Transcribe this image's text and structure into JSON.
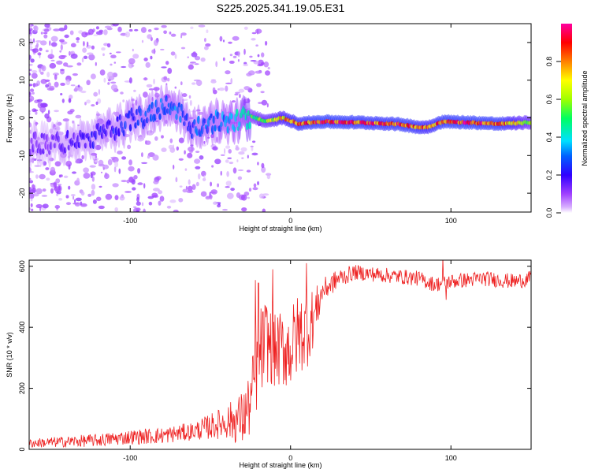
{
  "title": "S225.2025.341.19.05.E31",
  "chart_data": [
    {
      "type": "heatmap",
      "description": "Spectrogram: frequency vs height of straight line, colored by normalized spectral amplitude",
      "xlabel": "Height of straight line (km)",
      "ylabel": "Frequency (Hz)",
      "xlim": [
        -163,
        150
      ],
      "ylim": [
        -25,
        25
      ],
      "xticks": [
        -100,
        0,
        100
      ],
      "yticks": [
        -20,
        -10,
        0,
        10,
        20
      ],
      "colorbar": {
        "label": "Normalized spectral amplitude",
        "range": [
          0,
          1
        ],
        "ticks": [
          "0.0",
          "0.2",
          "0.4",
          "0.6",
          "0.8"
        ],
        "colors": [
          "#ffffff",
          "#a040ff",
          "#3000ff",
          "#0060ff",
          "#00e0ff",
          "#00ff60",
          "#a0ff00",
          "#ffff00",
          "#ff8000",
          "#ff0000",
          "#ff00a0"
        ]
      },
      "ridge": {
        "x": [
          -150,
          -130,
          -110,
          -90,
          -75,
          -60,
          -45,
          -35,
          -25,
          -15,
          -5,
          5,
          20,
          40,
          60,
          70,
          80,
          85,
          95,
          110,
          130,
          150
        ],
        "frequency": [
          -7,
          -6,
          -3,
          1,
          4,
          -3,
          -1,
          -1,
          0.5,
          -1,
          0,
          -1.5,
          -1,
          -1.2,
          -1.5,
          -1.8,
          -2.5,
          -2.5,
          -1,
          -1.2,
          -1.6,
          -1.2
        ],
        "amplitude": [
          0.15,
          0.2,
          0.25,
          0.3,
          0.35,
          0.3,
          0.35,
          0.4,
          0.55,
          0.65,
          0.8,
          0.9,
          0.98,
          0.95,
          0.92,
          0.95,
          0.9,
          0.85,
          0.95,
          0.97,
          0.95,
          0.6
        ]
      }
    },
    {
      "type": "line",
      "xlabel": "Height of straight line (km)",
      "ylabel": "SNR (10 * v/v)",
      "xlim": [
        -163,
        150
      ],
      "ylim": [
        0,
        620
      ],
      "xticks": [
        -100,
        0,
        100
      ],
      "yticks": [
        0,
        200,
        400,
        600
      ],
      "color": "#ee2222",
      "envelope": {
        "x": [
          -163,
          -140,
          -120,
          -100,
          -80,
          -60,
          -40,
          -30,
          -25,
          -20,
          -15,
          -10,
          -5,
          0,
          5,
          10,
          15,
          20,
          30,
          40,
          60,
          80,
          90,
          100,
          120,
          140,
          150
        ],
        "snr": [
          20,
          25,
          30,
          40,
          45,
          60,
          90,
          100,
          150,
          300,
          360,
          320,
          330,
          330,
          380,
          390,
          440,
          520,
          560,
          580,
          570,
          560,
          540,
          550,
          560,
          550,
          560
        ]
      },
      "noise_amplitude": {
        "x": [
          -163,
          -60,
          -40,
          -25,
          -20,
          -10,
          0,
          10,
          15,
          20,
          40,
          150
        ],
        "amp": [
          15,
          30,
          55,
          110,
          160,
          120,
          140,
          130,
          90,
          40,
          25,
          25
        ]
      },
      "spikes": [
        {
          "x": -22,
          "snr": 555
        },
        {
          "x": -20,
          "snr": 545
        },
        {
          "x": -11,
          "snr": 590
        },
        {
          "x": 10,
          "snr": 610
        },
        {
          "x": 95,
          "snr": 625
        },
        {
          "x": 97,
          "snr": 490
        }
      ]
    }
  ]
}
